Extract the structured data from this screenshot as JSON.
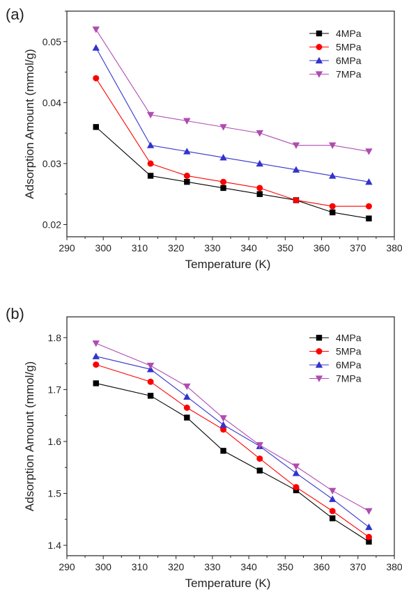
{
  "chart_data": [
    {
      "panel": "(a)",
      "type": "line",
      "xlabel": "Temperature (K)",
      "ylabel": "Adsorption Amount (mmol/g)",
      "xlim": [
        290,
        380
      ],
      "ylim": [
        0.018,
        0.055
      ],
      "xticks": [
        290,
        300,
        310,
        320,
        330,
        340,
        350,
        360,
        370,
        380
      ],
      "yticks": [
        0.02,
        0.03,
        0.04,
        0.05
      ],
      "ytick_labels": [
        "0.02",
        "0.03",
        "0.04",
        "0.05"
      ],
      "legend_position": "top-right",
      "x": [
        298,
        313,
        323,
        333,
        343,
        353,
        363,
        373
      ],
      "series": [
        {
          "name": "4MPa",
          "color": "#000000",
          "marker": "square",
          "values": [
            0.036,
            0.028,
            0.027,
            0.026,
            0.025,
            0.024,
            0.022,
            0.021
          ]
        },
        {
          "name": "5MPa",
          "color": "#ff0000",
          "marker": "circle",
          "values": [
            0.044,
            0.03,
            0.028,
            0.027,
            0.026,
            0.024,
            0.023,
            0.023
          ]
        },
        {
          "name": "6MPa",
          "color": "#3333cc",
          "marker": "triangle-up",
          "values": [
            0.049,
            0.033,
            0.032,
            0.031,
            0.03,
            0.029,
            0.028,
            0.027
          ]
        },
        {
          "name": "7MPa",
          "color": "#b04cb0",
          "marker": "triangle-down",
          "values": [
            0.052,
            0.038,
            0.037,
            0.036,
            0.035,
            0.033,
            0.033,
            0.032
          ]
        }
      ]
    },
    {
      "panel": "(b)",
      "type": "line",
      "xlabel": "Temperature (K)",
      "ylabel": "Adsorption Amount (mmol/g)",
      "xlim": [
        290,
        380
      ],
      "ylim": [
        1.38,
        1.84
      ],
      "xticks": [
        290,
        300,
        310,
        320,
        330,
        340,
        350,
        360,
        370,
        380
      ],
      "yticks": [
        1.4,
        1.5,
        1.6,
        1.7,
        1.8
      ],
      "ytick_labels": [
        "1.4",
        "1.5",
        "1.6",
        "1.7",
        "1.8"
      ],
      "legend_position": "top-right",
      "x": [
        298,
        313,
        323,
        333,
        343,
        353,
        363,
        373
      ],
      "series": [
        {
          "name": "4MPa",
          "color": "#000000",
          "marker": "square",
          "values": [
            1.712,
            1.688,
            1.646,
            1.582,
            1.544,
            1.506,
            1.452,
            1.407
          ]
        },
        {
          "name": "5MPa",
          "color": "#ff0000",
          "marker": "circle",
          "values": [
            1.748,
            1.715,
            1.665,
            1.623,
            1.567,
            1.512,
            1.466,
            1.416
          ]
        },
        {
          "name": "6MPa",
          "color": "#3333cc",
          "marker": "triangle-up",
          "values": [
            1.764,
            1.739,
            1.686,
            1.632,
            1.591,
            1.539,
            1.489,
            1.435
          ]
        },
        {
          "name": "7MPa",
          "color": "#b04cb0",
          "marker": "triangle-down",
          "values": [
            1.789,
            1.746,
            1.706,
            1.645,
            1.593,
            1.552,
            1.505,
            1.466
          ]
        }
      ]
    }
  ]
}
